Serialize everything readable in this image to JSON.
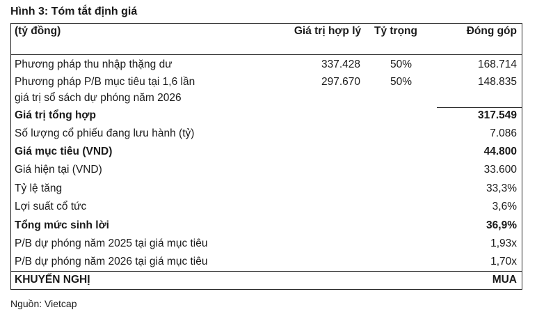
{
  "title": "Hình 3: Tóm tắt định giá",
  "header": {
    "label": "(tỷ đồng)",
    "value": "Giá trị hợp lý",
    "weight": "Tỷ trọng",
    "contribution": "Đóng góp"
  },
  "rows": [
    {
      "label": "Phương pháp thu nhập thặng dư",
      "value": "337.428",
      "weight": "50%",
      "contribution": "168.714"
    },
    {
      "label": "Phương pháp P/B mục tiêu tại 1,6 lần",
      "label2": "giá trị sổ sách dự phóng năm 2026",
      "value": "297.670",
      "weight": "50%",
      "contribution": "148.835"
    },
    {
      "label": "Giá trị tổng hợp",
      "contribution": "317.549"
    },
    {
      "label": "Số lượng cổ phiếu đang lưu hành (tỷ)",
      "contribution": "7.086"
    },
    {
      "label": "Giá mục tiêu (VND)",
      "contribution": "44.800"
    },
    {
      "label": "Giá hiện tại (VND)",
      "contribution": "33.600"
    },
    {
      "label": "Tỷ lệ tăng",
      "contribution": "33,3%"
    },
    {
      "label": "Lợi suất cổ tức",
      "contribution": "3,6%"
    },
    {
      "label": "Tổng mức sinh lời",
      "contribution": "36,9%"
    },
    {
      "label": "P/B dự phóng năm 2025 tại giá mục tiêu",
      "contribution": "1,93x"
    },
    {
      "label": "P/B dự phóng năm 2026 tại giá mục tiêu",
      "contribution": "1,70x"
    },
    {
      "label": "KHUYẾN NGHỊ",
      "contribution": "MUA"
    }
  ],
  "source": "Nguồn: Vietcap"
}
